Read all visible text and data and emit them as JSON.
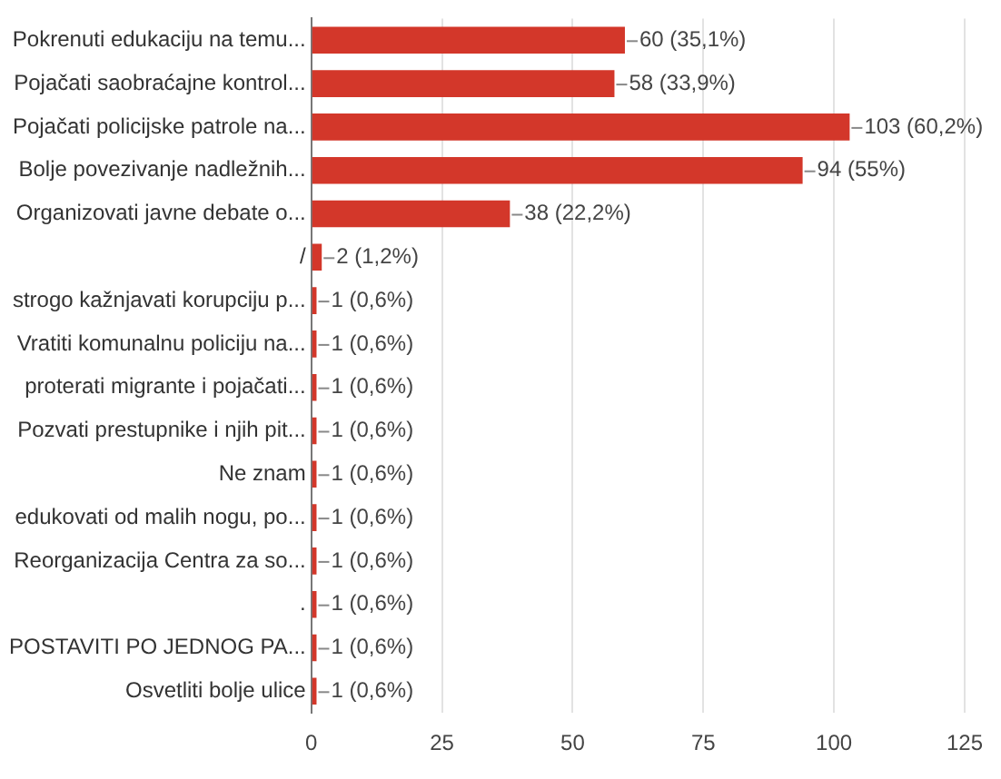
{
  "chart_data": {
    "type": "bar",
    "orientation": "horizontal",
    "categories": [
      "Pokrenuti edukaciju na temu...",
      "Pojačati saobraćajne kontrol...",
      "Pojačati policijske patrole na...",
      "Bolje povezivanje nadležnih...",
      "Organizovati javne debate o...",
      "/",
      "strogo kažnjavati korupciju p...",
      "Vratiti komunalnu policiju na...",
      "proterati migrante i pojačati...",
      "Pozvati prestupnike i njih pit...",
      "Ne znam",
      "edukovati od malih nogu, po...",
      "Reorganizacija Centra za so...",
      ".",
      "POSTAVITI PO JEDNOG PA...",
      "Osvetliti bolje ulice"
    ],
    "values": [
      60,
      58,
      103,
      94,
      38,
      2,
      1,
      1,
      1,
      1,
      1,
      1,
      1,
      1,
      1,
      1
    ],
    "value_labels": [
      "60 (35,1%)",
      "58 (33,9%)",
      "103 (60,2%)",
      "94 (55%)",
      "38 (22,2%)",
      "2 (1,2%)",
      "1 (0,6%)",
      "1 (0,6%)",
      "1 (0,6%)",
      "1 (0,6%)",
      "1 (0,6%)",
      "1 (0,6%)",
      "1 (0,6%)",
      "1 (0,6%)",
      "1 (0,6%)",
      "1 (0,6%)"
    ],
    "color": "#d3372a",
    "xlim": [
      0,
      125
    ],
    "xticks": [
      0,
      25,
      50,
      75,
      100,
      125
    ],
    "grid": "x",
    "legend": false
  }
}
